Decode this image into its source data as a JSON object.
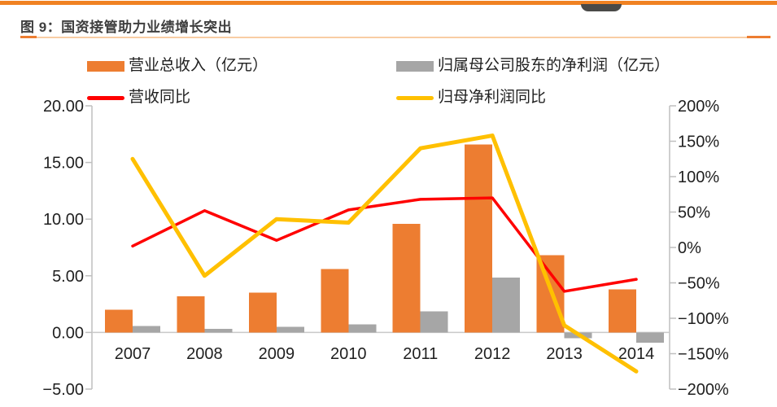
{
  "page": {
    "background": "#FFFFFF",
    "top_accent_color": "#F08222",
    "logo_fragment_color": "#4A4A48"
  },
  "figure": {
    "title": "图 9：国资接管助力业绩增长突出",
    "title_color": "#3F3F3F",
    "underline_dark_color": "#ED7D31",
    "underline_light_color": "#F9CDA4"
  },
  "chart_data": {
    "type": "combo",
    "categories": [
      "2007",
      "2008",
      "2009",
      "2010",
      "2011",
      "2012",
      "2013",
      "2014"
    ],
    "series": [
      {
        "name": "营业总收入（亿元）",
        "type": "bar",
        "axis": "left",
        "color": "#ED7D31",
        "values": [
          2.0,
          3.2,
          3.5,
          5.6,
          9.6,
          16.6,
          6.8,
          3.8
        ]
      },
      {
        "name": "归属母公司股东的净利润（亿元）",
        "type": "bar",
        "axis": "left",
        "color": "#A6A6A6",
        "values": [
          0.55,
          0.3,
          0.5,
          0.7,
          1.85,
          4.85,
          -0.5,
          -0.9
        ]
      },
      {
        "name": "营收同比",
        "type": "line",
        "axis": "right",
        "color": "#FF0000",
        "stroke_width": 3.5,
        "values": [
          2,
          52,
          10,
          53,
          68,
          70,
          -62,
          -45
        ]
      },
      {
        "name": "归母净利润同比",
        "type": "line",
        "axis": "right",
        "color": "#FFC000",
        "stroke_width": 5,
        "values": [
          125,
          -40,
          40,
          35,
          140,
          158,
          -110,
          -175
        ]
      }
    ],
    "left_axis": {
      "min": -5,
      "max": 20,
      "tick_values": [
        20,
        15,
        10,
        5,
        0,
        -5
      ],
      "tick_labels": [
        "20.00",
        "15.00",
        "10.00",
        "5.00",
        "0.00",
        "−5.00"
      ]
    },
    "right_axis": {
      "min": -200,
      "max": 200,
      "tick_values": [
        200,
        150,
        100,
        50,
        0,
        -50,
        -100,
        -150,
        -200
      ],
      "tick_labels": [
        "200%",
        "150%",
        "100%",
        "50%",
        "0%",
        "−50%",
        "−100%",
        "−150%",
        "−200%"
      ]
    },
    "grid": "off",
    "legend_position": "top",
    "axis_line_color": "#BFBFBF",
    "zero_line_color": "#C9C9C9",
    "text_color": "#1F1F1F"
  }
}
